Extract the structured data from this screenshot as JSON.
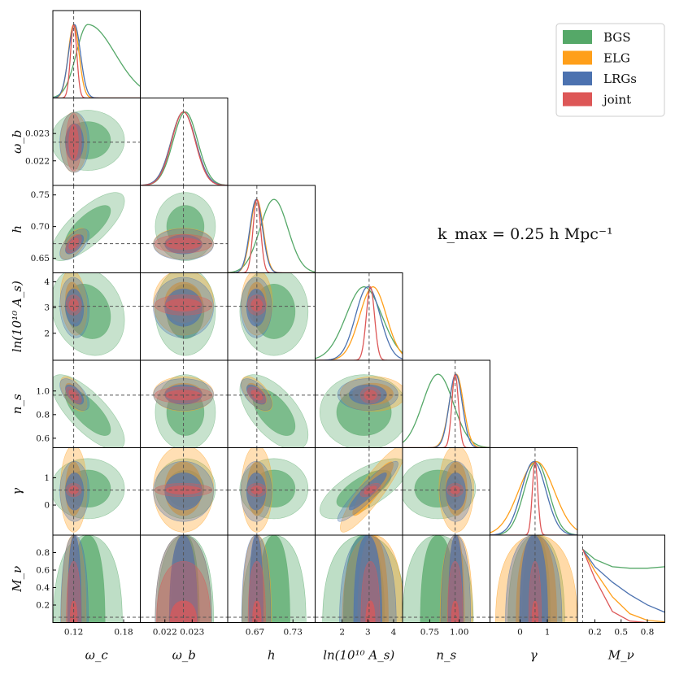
{
  "chart_data": {
    "type": "corner",
    "title": "",
    "annotation": "k_max = 0.25 h Mpc⁻¹",
    "parameters": [
      {
        "key": "wc",
        "label": "ω_c",
        "fiducial": 0.12,
        "range": [
          0.095,
          0.2
        ],
        "ticks": [
          0.12,
          0.18
        ],
        "tick_labels": [
          "0.12",
          "0.18"
        ]
      },
      {
        "key": "wb",
        "label": "ω_b",
        "fiducial": 0.02268,
        "range": [
          0.0211,
          0.0243
        ],
        "ticks": [
          0.022,
          0.023
        ],
        "tick_labels": [
          "0.022",
          "0.023"
        ]
      },
      {
        "key": "h",
        "label": "h",
        "fiducial": 0.673,
        "range": [
          0.627,
          0.765
        ],
        "ticks": [
          0.67,
          0.73
        ],
        "tick_labels": [
          "0.67",
          "0.73"
        ]
      },
      {
        "key": "lnAs",
        "label": "ln(10¹⁰ A_s)",
        "fiducial": 3.05,
        "range": [
          0.95,
          4.35
        ],
        "ticks": [
          2,
          3,
          4
        ],
        "tick_labels": [
          "2",
          "3",
          "4"
        ]
      },
      {
        "key": "ns",
        "label": "n_s",
        "fiducial": 0.965,
        "range": [
          0.52,
          1.26
        ],
        "ticks": [
          0.75,
          1.0
        ],
        "tick_labels": [
          "0.75",
          "1.00"
        ]
      },
      {
        "key": "gamma",
        "label": "γ",
        "fiducial": 0.55,
        "range": [
          -1.1,
          2.1
        ],
        "ticks": [
          0,
          1
        ],
        "tick_labels": [
          "0",
          "1"
        ]
      },
      {
        "key": "mnu",
        "label": "M_ν",
        "fiducial": 0.06,
        "range": [
          0.0,
          1.0
        ],
        "ticks": [
          0.2,
          0.5,
          0.8
        ],
        "tick_labels": [
          "0.2",
          "0.5",
          "0.8"
        ]
      }
    ],
    "y_tick_labels": {
      "wb": [
        {
          "v": 0.022,
          "t": "0.022"
        },
        {
          "v": 0.023,
          "t": "0.023"
        }
      ],
      "h": [
        {
          "v": 0.65,
          "t": "0.65"
        },
        {
          "v": 0.7,
          "t": "0.70"
        },
        {
          "v": 0.75,
          "t": "0.75"
        }
      ],
      "lnAs": [
        {
          "v": 2,
          "t": "2"
        },
        {
          "v": 3,
          "t": "3"
        },
        {
          "v": 4,
          "t": "4"
        }
      ],
      "ns": [
        {
          "v": 0.6,
          "t": "0.6"
        },
        {
          "v": 0.8,
          "t": "0.8"
        },
        {
          "v": 1.0,
          "t": "1.0"
        }
      ],
      "gamma": [
        {
          "v": 0,
          "t": "0"
        },
        {
          "v": 1,
          "t": "1"
        }
      ],
      "mnu": [
        {
          "v": 0.2,
          "t": "0.2"
        },
        {
          "v": 0.4,
          "t": "0.4"
        },
        {
          "v": 0.6,
          "t": "0.6"
        },
        {
          "v": 0.8,
          "t": "0.8"
        }
      ]
    },
    "series": [
      {
        "name": "BGS",
        "color": "#55a868",
        "mean": {
          "wc": 0.137,
          "wb": 0.02275,
          "h": 0.7,
          "lnAs": 2.85,
          "ns": 0.82,
          "gamma": 0.6,
          "mnu": 0.45
        },
        "sigma": {
          "wc": 0.018,
          "wb": 0.00045,
          "h": 0.022,
          "lnAs": 0.7,
          "ns": 0.13,
          "gamma": 0.45,
          "mnu": 0.5
        },
        "corr": {
          "wc-h": 0.75,
          "wc-ns": -0.75,
          "h-ns": -0.6,
          "lnAs-gamma": 0.7,
          "wc-lnAs": -0.2
        }
      },
      {
        "name": "ELG",
        "color": "#ff9f1a",
        "mean": {
          "wc": 0.12,
          "wb": 0.02268,
          "h": 0.673,
          "lnAs": 3.2,
          "ns": 0.975,
          "gamma": 0.6,
          "mnu": 0.4
        },
        "sigma": {
          "wc": 0.0065,
          "wb": 0.00045,
          "h": 0.01,
          "lnAs": 0.52,
          "ns": 0.06,
          "gamma": 0.65,
          "mnu": 0.5
        },
        "corr": {
          "wc-h": 0.6,
          "wc-ns": -0.6,
          "h-ns": -0.6,
          "lnAs-gamma": 0.9,
          "wc-lnAs": -0.2
        }
      },
      {
        "name": "LRGs",
        "color": "#4c72b0",
        "mean": {
          "wc": 0.121,
          "wb": 0.02268,
          "h": 0.672,
          "lnAs": 3.0,
          "ns": 0.97,
          "gamma": 0.5,
          "mnu": 0.4
        },
        "sigma": {
          "wc": 0.0072,
          "wb": 0.00045,
          "h": 0.01,
          "lnAs": 0.48,
          "ns": 0.055,
          "gamma": 0.45,
          "mnu": 0.5
        },
        "corr": {
          "wc-h": 0.6,
          "wc-ns": -0.6,
          "h-ns": -0.6,
          "lnAs-gamma": 0.92,
          "wc-lnAs": -0.1
        }
      },
      {
        "name": "joint",
        "color": "#dd5757",
        "mean": {
          "wc": 0.12,
          "wb": 0.02268,
          "h": 0.673,
          "lnAs": 3.1,
          "ns": 0.965,
          "gamma": 0.55,
          "mnu": 0.15
        },
        "sigma": {
          "wc": 0.0038,
          "wb": 0.00043,
          "h": 0.006,
          "lnAs": 0.16,
          "ns": 0.028,
          "gamma": 0.1,
          "mnu": 0.3
        },
        "corr": {
          "wc-h": 0.5,
          "wc-ns": -0.6,
          "h-ns": -0.5,
          "lnAs-gamma": 0.6,
          "wc-lnAs": 0.0
        }
      }
    ],
    "mnu_marginal": {
      "x": [
        0.06,
        0.2,
        0.4,
        0.6,
        0.8,
        1.0
      ],
      "BGS": [
        1.0,
        0.86,
        0.76,
        0.74,
        0.74,
        0.76
      ],
      "ELG": [
        1.0,
        0.7,
        0.35,
        0.12,
        0.03,
        0.01
      ],
      "LRGs": [
        1.0,
        0.76,
        0.55,
        0.38,
        0.24,
        0.14
      ],
      "joint": [
        1.0,
        0.6,
        0.15,
        0.02,
        0.0,
        0.0
      ]
    },
    "legend_position": "top-right"
  }
}
